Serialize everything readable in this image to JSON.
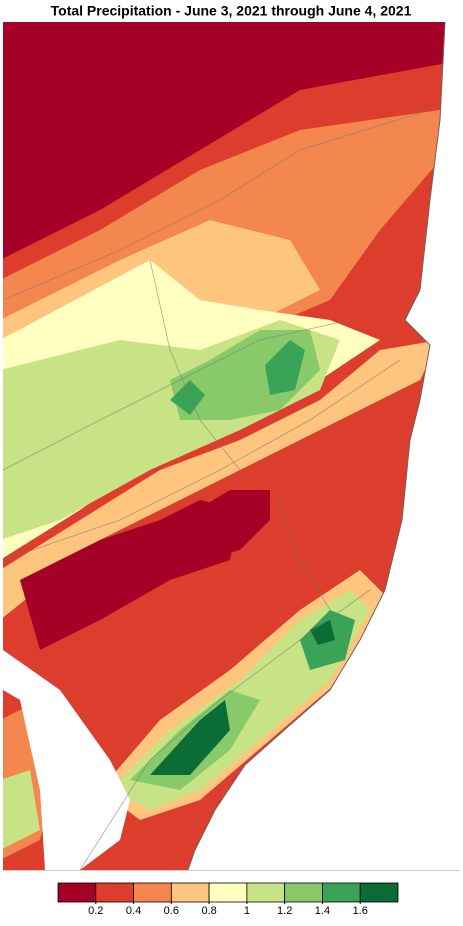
{
  "header": {
    "title": "Total Precipitation - June 3, 2021 through June 4, 2021"
  },
  "legend": {
    "colors": [
      "#a50026",
      "#dc3d2d",
      "#f4874d",
      "#fdc57e",
      "#ffffc0",
      "#c8e386",
      "#88c96a",
      "#3aa357",
      "#0b6c35"
    ],
    "ticks": [
      0.2,
      0.4,
      0.6,
      0.8,
      1,
      1.2,
      1.4,
      1.6
    ]
  }
}
